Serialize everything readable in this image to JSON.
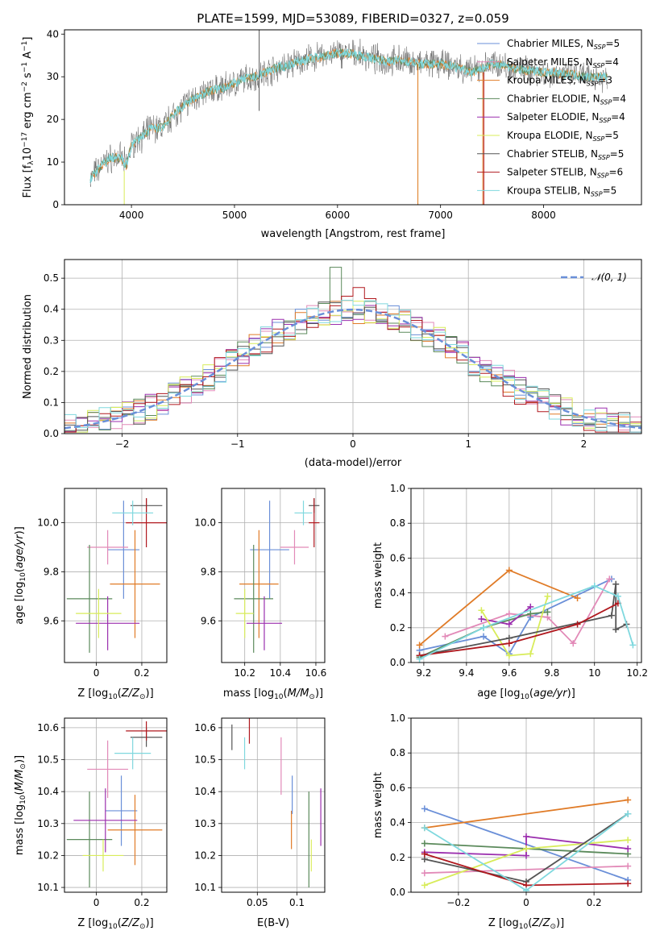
{
  "title": "PLATE=1599, MJD=53089, FIBERID=0327, z=0.059",
  "colors": {
    "Chabrier MILES": "#6a8fd8",
    "Salpeter MILES": "#e28ab8",
    "Kroupa MILES": "#e07b27",
    "Chabrier ELODIE": "#5b8a5b",
    "Salpeter ELODIE": "#9b2fae",
    "Kroupa ELODIE": "#d8ec5a",
    "Chabrier STELIB": "#555555",
    "Salpeter STELIB": "#b0181e",
    "Kroupa STELIB": "#7fd8de"
  },
  "legend": [
    {
      "model": "Chabrier MILES",
      "prefix": "Chabrier MILES, N",
      "sub": "SSP",
      "suffix": "=5"
    },
    {
      "model": "Salpeter MILES",
      "prefix": "Salpeter MILES, N",
      "sub": "SSP",
      "suffix": "=4"
    },
    {
      "model": "Kroupa MILES",
      "prefix": "Kroupa MILES, N",
      "sub": "SSP",
      "suffix": "=3"
    },
    {
      "model": "Chabrier ELODIE",
      "prefix": "Chabrier ELODIE, N",
      "sub": "SSP",
      "suffix": "=4"
    },
    {
      "model": "Salpeter ELODIE",
      "prefix": "Salpeter ELODIE, N",
      "sub": "SSP",
      "suffix": "=4"
    },
    {
      "model": "Kroupa ELODIE",
      "prefix": "Kroupa ELODIE, N",
      "sub": "SSP",
      "suffix": "=5"
    },
    {
      "model": "Chabrier STELIB",
      "prefix": "Chabrier STELIB, N",
      "sub": "SSP",
      "suffix": "=5"
    },
    {
      "model": "Salpeter STELIB",
      "prefix": "Salpeter STELIB, N",
      "sub": "SSP",
      "suffix": "=6"
    },
    {
      "model": "Kroupa STELIB",
      "prefix": "Kroupa STELIB, N",
      "sub": "SSP",
      "suffix": "=5"
    }
  ],
  "chart_data": [
    {
      "id": "spectrum",
      "type": "line",
      "xlabel": "wavelength [Angstrom, rest frame]",
      "ylabel": "Flux [f_λ 10^-17 erg cm^-2 s^-1 A^-1]",
      "xlim": [
        3350,
        8950
      ],
      "ylim": [
        0,
        41
      ],
      "xticks": [
        4000,
        5000,
        6000,
        7000,
        8000
      ],
      "yticks": [
        0,
        10,
        20,
        30,
        40
      ],
      "grid": false,
      "legend_position": "top-right",
      "continuum": [
        [
          3600,
          6
        ],
        [
          3700,
          9
        ],
        [
          3800,
          11
        ],
        [
          3900,
          11
        ],
        [
          3950,
          9
        ],
        [
          4000,
          14
        ],
        [
          4100,
          16
        ],
        [
          4200,
          18
        ],
        [
          4300,
          18
        ],
        [
          4400,
          21
        ],
        [
          4500,
          23
        ],
        [
          4600,
          25
        ],
        [
          4700,
          26
        ],
        [
          4800,
          27
        ],
        [
          4900,
          27.5
        ],
        [
          5000,
          28.5
        ],
        [
          5100,
          29.5
        ],
        [
          5200,
          30
        ],
        [
          5300,
          31
        ],
        [
          5400,
          32
        ],
        [
          5500,
          32.5
        ],
        [
          5600,
          33.5
        ],
        [
          5700,
          34
        ],
        [
          5800,
          34.5
        ],
        [
          5900,
          35
        ],
        [
          6000,
          35.5
        ],
        [
          6100,
          35.5
        ],
        [
          6200,
          35
        ],
        [
          6300,
          34.5
        ],
        [
          6400,
          34
        ],
        [
          6500,
          33.5
        ],
        [
          6600,
          34
        ],
        [
          6700,
          33.5
        ],
        [
          6800,
          33
        ],
        [
          6900,
          33
        ],
        [
          7000,
          33
        ],
        [
          7100,
          32.5
        ],
        [
          7200,
          32
        ],
        [
          7300,
          31
        ],
        [
          7400,
          32
        ],
        [
          7500,
          33
        ],
        [
          7600,
          33
        ],
        [
          7700,
          32
        ],
        [
          7800,
          31.5
        ],
        [
          7900,
          31.5
        ],
        [
          8000,
          31
        ],
        [
          8100,
          31
        ],
        [
          8200,
          30.5
        ],
        [
          8300,
          30.5
        ],
        [
          8400,
          30
        ],
        [
          8500,
          30
        ],
        [
          8600,
          30
        ]
      ],
      "glitches": [
        {
          "x": 3930,
          "ylow": 0,
          "yhigh": 8,
          "model": "Kroupa ELODIE"
        },
        {
          "x": 6780,
          "ylow": 0,
          "yhigh": 33,
          "model": "Kroupa ELODIE"
        },
        {
          "x": 6780,
          "ylow": 0,
          "yhigh": 33,
          "model": "Kroupa MILES"
        },
        {
          "x": 7410,
          "ylow": 0,
          "yhigh": 31,
          "model": "Kroupa MILES"
        },
        {
          "x": 7420,
          "ylow": 0,
          "yhigh": 31,
          "model": "Salpeter STELIB"
        },
        {
          "x": 5240,
          "ylow": 22,
          "yhigh": 41,
          "model": "Chabrier STELIB"
        }
      ]
    },
    {
      "id": "residuals",
      "type": "histogram",
      "xlabel": "(data-model)/error",
      "ylabel": "Normed distribution",
      "xlim": [
        -2.5,
        2.5
      ],
      "ylim": [
        0,
        0.56
      ],
      "xticks": [
        -2,
        -1,
        0,
        1,
        2
      ],
      "yticks": [
        0.0,
        0.1,
        0.2,
        0.3,
        0.4,
        0.5
      ],
      "grid": true,
      "legend_position": "top-right",
      "reference_curve": {
        "label": "𝒩(0, 1)",
        "mean": 0,
        "sigma": 1,
        "color": "#6a8fd8"
      },
      "bin_edges_start": -2.5,
      "bin_width": 0.1
    },
    {
      "id": "Z-age",
      "type": "errorbar",
      "xlabel": "Z [log10(Z/Z⊙)]",
      "ylabel": "age [log10(age/yr)]",
      "xlim": [
        -0.14,
        0.31
      ],
      "ylim": [
        9.43,
        10.14
      ],
      "xticks": [
        0.0,
        0.2
      ],
      "yticks": [
        9.6,
        9.8,
        10.0
      ],
      "grid": true,
      "points": [
        {
          "model": "Chabrier MILES",
          "x": 0.12,
          "xerr": 0.07,
          "y": 9.89,
          "yerr": 0.2
        },
        {
          "model": "Salpeter MILES",
          "x": 0.05,
          "xerr": 0.09,
          "y": 9.9,
          "yerr": 0.07
        },
        {
          "model": "Kroupa MILES",
          "x": 0.17,
          "xerr": 0.11,
          "y": 9.75,
          "yerr": 0.22
        },
        {
          "model": "Chabrier ELODIE",
          "x": -0.03,
          "xerr": 0.1,
          "y": 9.69,
          "yerr": 0.22
        },
        {
          "model": "Salpeter ELODIE",
          "x": 0.05,
          "xerr": 0.14,
          "y": 9.59,
          "yerr": 0.11
        },
        {
          "model": "Kroupa ELODIE",
          "x": 0.01,
          "xerr": 0.1,
          "y": 9.63,
          "yerr": 0.1
        },
        {
          "model": "Chabrier STELIB",
          "x": 0.22,
          "xerr": 0.07,
          "y": 10.07,
          "yerr": 0.03
        },
        {
          "model": "Salpeter STELIB",
          "x": 0.22,
          "xerr": 0.09,
          "y": 10.0,
          "yerr": 0.1
        },
        {
          "model": "Kroupa STELIB",
          "x": 0.16,
          "xerr": 0.09,
          "y": 10.04,
          "yerr": 0.05
        }
      ]
    },
    {
      "id": "mass-age",
      "type": "errorbar",
      "xlabel": "mass [log10(M/M⊙)]",
      "ylabel": "",
      "xlim": [
        10.07,
        10.65
      ],
      "ylim": [
        9.43,
        10.14
      ],
      "xticks": [
        10.2,
        10.4,
        10.6
      ],
      "yticks": [
        9.6,
        9.8,
        10.0
      ],
      "grid": true,
      "points": [
        {
          "model": "Chabrier MILES",
          "x": 10.34,
          "xerr": 0.11,
          "y": 9.89,
          "yerr": 0.2
        },
        {
          "model": "Salpeter MILES",
          "x": 10.48,
          "xerr": 0.08,
          "y": 9.9,
          "yerr": 0.07
        },
        {
          "model": "Kroupa MILES",
          "x": 10.28,
          "xerr": 0.11,
          "y": 9.75,
          "yerr": 0.22
        },
        {
          "model": "Chabrier ELODIE",
          "x": 10.25,
          "xerr": 0.11,
          "y": 9.69,
          "yerr": 0.22
        },
        {
          "model": "Salpeter ELODIE",
          "x": 10.31,
          "xerr": 0.1,
          "y": 9.59,
          "yerr": 0.11
        },
        {
          "model": "Kroupa ELODIE",
          "x": 10.2,
          "xerr": 0.05,
          "y": 9.63,
          "yerr": 0.1
        },
        {
          "model": "Chabrier STELIB",
          "x": 10.59,
          "xerr": 0.03,
          "y": 10.07,
          "yerr": 0.03
        },
        {
          "model": "Salpeter STELIB",
          "x": 10.59,
          "xerr": 0.03,
          "y": 10.0,
          "yerr": 0.1
        },
        {
          "model": "Kroupa STELIB",
          "x": 10.53,
          "xerr": 0.05,
          "y": 10.04,
          "yerr": 0.05
        }
      ]
    },
    {
      "id": "age-weight",
      "type": "line",
      "xlabel": "age [log10(age/yr)]",
      "ylabel": "mass weight",
      "xlim": [
        9.14,
        10.22
      ],
      "ylim": [
        0,
        1.0
      ],
      "xticks": [
        9.2,
        9.4,
        9.6,
        9.8,
        10.0,
        10.2
      ],
      "yticks": [
        0.0,
        0.2,
        0.4,
        0.6,
        0.8,
        1.0
      ],
      "grid": true,
      "series": [
        {
          "model": "Chabrier MILES",
          "points": [
            [
              9.18,
              0.07
            ],
            [
              9.48,
              0.15
            ],
            [
              9.6,
              0.05
            ],
            [
              9.7,
              0.26
            ],
            [
              10.08,
              0.48
            ]
          ]
        },
        {
          "model": "Salpeter MILES",
          "points": [
            [
              9.3,
              0.15
            ],
            [
              9.6,
              0.28
            ],
            [
              9.78,
              0.26
            ],
            [
              9.9,
              0.11
            ],
            [
              10.07,
              0.48
            ]
          ]
        },
        {
          "model": "Kroupa MILES",
          "points": [
            [
              9.18,
              0.1
            ],
            [
              9.6,
              0.53
            ],
            [
              9.92,
              0.37
            ]
          ]
        },
        {
          "model": "Chabrier ELODIE",
          "points": [
            [
              9.18,
              0.03
            ],
            [
              9.48,
              0.2
            ],
            [
              9.7,
              0.28
            ],
            [
              9.78,
              0.29
            ]
          ]
        },
        {
          "model": "Salpeter ELODIE",
          "points": [
            [
              9.47,
              0.25
            ],
            [
              9.6,
              0.22
            ],
            [
              9.7,
              0.32
            ]
          ]
        },
        {
          "model": "Kroupa ELODIE",
          "points": [
            [
              9.47,
              0.3
            ],
            [
              9.6,
              0.04
            ],
            [
              9.7,
              0.05
            ],
            [
              9.78,
              0.38
            ]
          ]
        },
        {
          "model": "Chabrier STELIB",
          "points": [
            [
              9.18,
              0.04
            ],
            [
              9.6,
              0.14
            ],
            [
              10.08,
              0.27
            ],
            [
              10.1,
              0.45
            ],
            [
              10.1,
              0.19
            ],
            [
              10.15,
              0.22
            ]
          ]
        },
        {
          "model": "Salpeter STELIB",
          "points": [
            [
              9.18,
              0.04
            ],
            [
              9.6,
              0.11
            ],
            [
              9.92,
              0.22
            ],
            [
              10.11,
              0.34
            ]
          ]
        },
        {
          "model": "Kroupa STELIB",
          "points": [
            [
              9.18,
              0.02
            ],
            [
              9.48,
              0.2
            ],
            [
              10.0,
              0.44
            ],
            [
              10.11,
              0.38
            ],
            [
              10.18,
              0.1
            ]
          ]
        }
      ]
    },
    {
      "id": "Z-mass",
      "type": "errorbar",
      "xlabel": "Z [log10(Z/Z⊙)]",
      "ylabel": "mass [log10(M/M⊙)]",
      "xlim": [
        -0.14,
        0.31
      ],
      "ylim": [
        10.085,
        10.63
      ],
      "xticks": [
        0.0,
        0.2
      ],
      "yticks": [
        10.1,
        10.2,
        10.3,
        10.4,
        10.5,
        10.6
      ],
      "grid": true,
      "points": [
        {
          "model": "Chabrier MILES",
          "x": 0.11,
          "xerr": 0.07,
          "y": 10.34,
          "yerr": 0.11
        },
        {
          "model": "Salpeter MILES",
          "x": 0.05,
          "xerr": 0.09,
          "y": 10.47,
          "yerr": 0.09
        },
        {
          "model": "Kroupa MILES",
          "x": 0.17,
          "xerr": 0.12,
          "y": 10.28,
          "yerr": 0.11
        },
        {
          "model": "Chabrier ELODIE",
          "x": -0.03,
          "xerr": 0.1,
          "y": 10.25,
          "yerr": 0.15
        },
        {
          "model": "Salpeter ELODIE",
          "x": 0.04,
          "xerr": 0.14,
          "y": 10.31,
          "yerr": 0.1
        },
        {
          "model": "Kroupa ELODIE",
          "x": 0.03,
          "xerr": 0.09,
          "y": 10.2,
          "yerr": 0.05
        },
        {
          "model": "Chabrier STELIB",
          "x": 0.22,
          "xerr": 0.07,
          "y": 10.57,
          "yerr": 0.03
        },
        {
          "model": "Salpeter STELIB",
          "x": 0.22,
          "xerr": 0.09,
          "y": 10.59,
          "yerr": 0.03
        },
        {
          "model": "Kroupa STELIB",
          "x": 0.16,
          "xerr": 0.08,
          "y": 10.52,
          "yerr": 0.05
        }
      ]
    },
    {
      "id": "EBV-mass",
      "type": "errorbar",
      "xlabel": "E(B-V)",
      "ylabel": "",
      "xlim": [
        0.005,
        0.135
      ],
      "ylim": [
        10.085,
        10.63
      ],
      "xticks": [
        0.05,
        0.1
      ],
      "yticks": [
        10.1,
        10.2,
        10.3,
        10.4,
        10.5,
        10.6
      ],
      "grid": true,
      "points": [
        {
          "model": "Chabrier STELIB",
          "x": 0.018,
          "xerr": 0,
          "y": 10.57,
          "yerr": 0.04
        },
        {
          "model": "Kroupa STELIB",
          "x": 0.034,
          "xerr": 0,
          "y": 10.52,
          "yerr": 0.05
        },
        {
          "model": "Salpeter STELIB",
          "x": 0.04,
          "xerr": 0,
          "y": 10.59,
          "yerr": 0.04
        },
        {
          "model": "Salpeter MILES",
          "x": 0.08,
          "xerr": 0,
          "y": 10.48,
          "yerr": 0.09
        },
        {
          "model": "Kroupa MILES",
          "x": 0.093,
          "xerr": 0,
          "y": 10.28,
          "yerr": 0.06
        },
        {
          "model": "Chabrier MILES",
          "x": 0.094,
          "xerr": 0,
          "y": 10.39,
          "yerr": 0.06
        },
        {
          "model": "Chabrier ELODIE",
          "x": 0.115,
          "xerr": 0,
          "y": 10.25,
          "yerr": 0.15
        },
        {
          "model": "Kroupa ELODIE",
          "x": 0.118,
          "xerr": 0,
          "y": 10.2,
          "yerr": 0.05
        },
        {
          "model": "Salpeter ELODIE",
          "x": 0.13,
          "xerr": 0,
          "y": 10.32,
          "yerr": 0.09
        }
      ]
    },
    {
      "id": "Z-weight",
      "type": "line",
      "xlabel": "Z [log10(Z/Z⊙)]",
      "ylabel": "mass weight",
      "xlim": [
        -0.34,
        0.34
      ],
      "ylim": [
        0,
        1.0
      ],
      "xticks": [
        -0.2,
        0.0,
        0.2
      ],
      "yticks": [
        0.0,
        0.2,
        0.4,
        0.6,
        0.8,
        1.0
      ],
      "grid": true,
      "series": [
        {
          "model": "Chabrier MILES",
          "points": [
            [
              -0.3,
              0.48
            ],
            [
              0.3,
              0.07
            ]
          ]
        },
        {
          "model": "Salpeter MILES",
          "points": [
            [
              -0.3,
              0.11
            ],
            [
              0.3,
              0.15
            ]
          ]
        },
        {
          "model": "Kroupa MILES",
          "points": [
            [
              -0.3,
              0.37
            ],
            [
              0.3,
              0.53
            ]
          ]
        },
        {
          "model": "Chabrier ELODIE",
          "points": [
            [
              -0.3,
              0.28
            ],
            [
              0.3,
              0.22
            ]
          ]
        },
        {
          "model": "Salpeter ELODIE",
          "points": [
            [
              -0.3,
              0.23
            ],
            [
              0.0,
              0.21
            ],
            [
              0.0,
              0.32
            ],
            [
              0.3,
              0.25
            ]
          ]
        },
        {
          "model": "Kroupa ELODIE",
          "points": [
            [
              -0.3,
              0.04
            ],
            [
              0.0,
              0.25
            ],
            [
              0.3,
              0.3
            ]
          ]
        },
        {
          "model": "Chabrier STELIB",
          "points": [
            [
              -0.3,
              0.19
            ],
            [
              0.0,
              0.06
            ],
            [
              0.3,
              0.45
            ]
          ]
        },
        {
          "model": "Salpeter STELIB",
          "points": [
            [
              -0.3,
              0.22
            ],
            [
              0.0,
              0.04
            ],
            [
              0.3,
              0.05
            ]
          ]
        },
        {
          "model": "Kroupa STELIB",
          "points": [
            [
              -0.3,
              0.37
            ],
            [
              0.0,
              0.01
            ],
            [
              0.3,
              0.45
            ]
          ]
        }
      ]
    }
  ]
}
